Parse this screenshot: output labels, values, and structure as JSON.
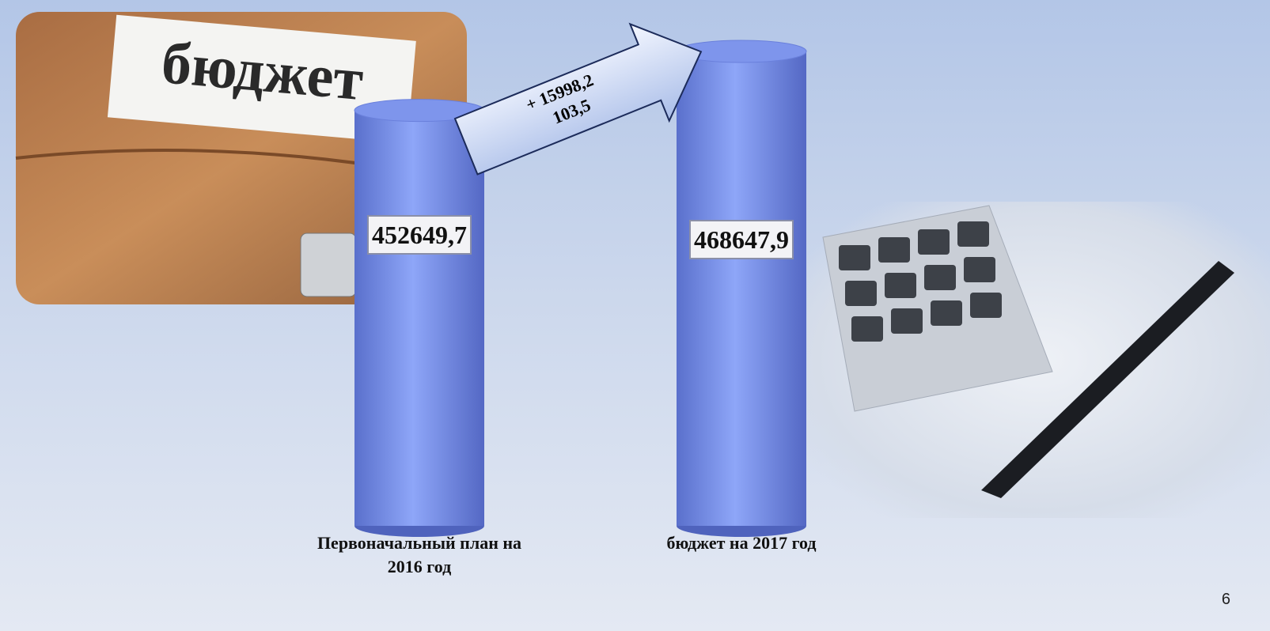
{
  "chart_data": {
    "type": "bar",
    "categories": [
      "Первоначальный план на 2016 год",
      "бюджет на 2017 год"
    ],
    "values": [
      452649.7,
      468647.9
    ],
    "value_labels": [
      "452649,7",
      "468647,9"
    ],
    "color": "#7e95ec",
    "ylim": [
      340000,
      480000
    ],
    "annotations": [
      "+ 15998,2",
      "103,5"
    ]
  },
  "photo_text": "бюджет",
  "slide_number": "6"
}
